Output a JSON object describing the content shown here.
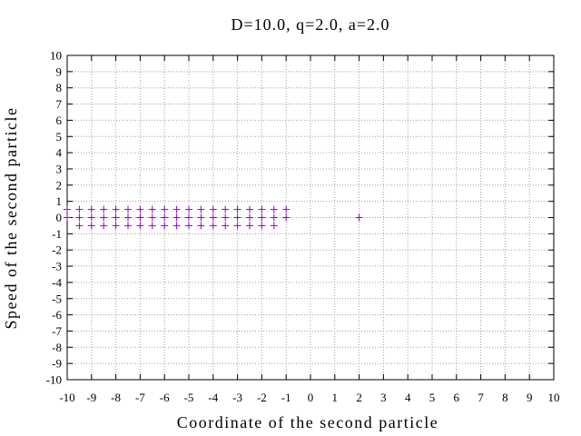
{
  "chart_data": {
    "type": "scatter",
    "title": "D=10.0, q=2.0, a=2.0",
    "xlabel": "Coordinate of the second particle",
    "ylabel": "Speed of the second particle",
    "xlim": [
      -10,
      10
    ],
    "ylim": [
      -10,
      10
    ],
    "xticks": [
      "-10",
      "-9",
      "-8",
      "-7",
      "-6",
      "-5",
      "-4",
      "-3",
      "-2",
      "-1",
      "0",
      "1",
      "2",
      "3",
      "4",
      "5",
      "6",
      "7",
      "8",
      "9",
      "10"
    ],
    "yticks": [
      "10",
      "9",
      "8",
      "7",
      "6",
      "5",
      "4",
      "3",
      "2",
      "1",
      "0",
      "-1",
      "-2",
      "-3",
      "-4",
      "-5",
      "-6",
      "-7",
      "-8",
      "-9",
      "-10"
    ],
    "grid": true,
    "marker": "+",
    "marker_color": "#9400d3",
    "series": [
      {
        "points": [
          [
            -10,
            0.5
          ],
          [
            -9.5,
            0.5
          ],
          [
            -9,
            0.5
          ],
          [
            -8.5,
            0.5
          ],
          [
            -8,
            0.5
          ],
          [
            -7.5,
            0.5
          ],
          [
            -7,
            0.5
          ],
          [
            -6.5,
            0.5
          ],
          [
            -6,
            0.5
          ],
          [
            -5.5,
            0.5
          ],
          [
            -5,
            0.5
          ],
          [
            -4.5,
            0.5
          ],
          [
            -4,
            0.5
          ],
          [
            -3.5,
            0.5
          ],
          [
            -3,
            0.5
          ],
          [
            -2.5,
            0.5
          ],
          [
            -2,
            0.5
          ],
          [
            -1.5,
            0.5
          ],
          [
            -1,
            0.5
          ],
          [
            -10,
            0
          ],
          [
            -9.5,
            0
          ],
          [
            -9,
            0
          ],
          [
            -8.5,
            0
          ],
          [
            -8,
            0
          ],
          [
            -7.5,
            0
          ],
          [
            -7,
            0
          ],
          [
            -6.5,
            0
          ],
          [
            -6,
            0
          ],
          [
            -5.5,
            0
          ],
          [
            -5,
            0
          ],
          [
            -4.5,
            0
          ],
          [
            -4,
            0
          ],
          [
            -3.5,
            0
          ],
          [
            -3,
            0
          ],
          [
            -2.5,
            0
          ],
          [
            -2,
            0
          ],
          [
            -1.5,
            0
          ],
          [
            -1,
            0
          ],
          [
            -9.5,
            -0.5
          ],
          [
            -9,
            -0.5
          ],
          [
            -8.5,
            -0.5
          ],
          [
            -8,
            -0.5
          ],
          [
            -7.5,
            -0.5
          ],
          [
            -7,
            -0.5
          ],
          [
            -6.5,
            -0.5
          ],
          [
            -6,
            -0.5
          ],
          [
            -5.5,
            -0.5
          ],
          [
            -5,
            -0.5
          ],
          [
            -4.5,
            -0.5
          ],
          [
            -4,
            -0.5
          ],
          [
            -3.5,
            -0.5
          ],
          [
            -3,
            -0.5
          ],
          [
            -2.5,
            -0.5
          ],
          [
            -2,
            -0.5
          ],
          [
            -1.5,
            -0.5
          ],
          [
            2,
            0
          ]
        ]
      }
    ]
  }
}
